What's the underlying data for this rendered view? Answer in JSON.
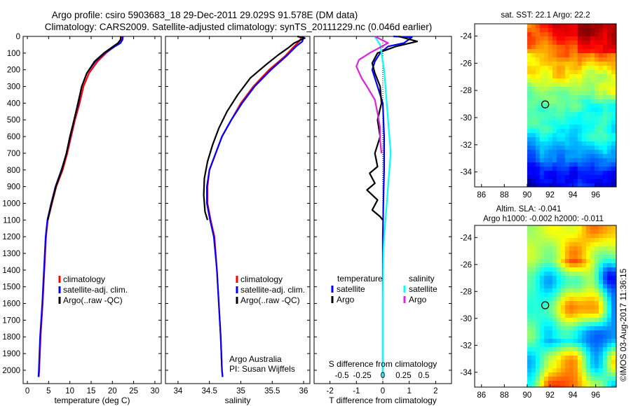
{
  "header": {
    "line1": "Argo profile: csiro 5903683_18 29-Dec-2011 29.029S 91.578E (DM data)",
    "line2": "Climatology: CARS2009. Satellite-adjusted climatology: synTS_20111229.nc (0.046d earlier)"
  },
  "credit": "©IMOS 03-Aug-2017 11:36:15",
  "colors": {
    "climatology": "#ff0000",
    "satellite": "#0000ff",
    "argo": "#000000",
    "salinity_satellite": "#00ffff",
    "salinity_argo": "#e020e0"
  },
  "chart_data": [
    {
      "type": "line",
      "name": "temperature",
      "xlabel": "temperature (deg C)",
      "xlim": [
        -1,
        31.5
      ],
      "ylim": [
        2080,
        0
      ],
      "xticks": [
        0,
        5,
        10,
        15,
        20,
        25,
        30
      ],
      "yticks": [
        0,
        100,
        200,
        300,
        400,
        500,
        600,
        700,
        800,
        900,
        1000,
        1100,
        1200,
        1300,
        1400,
        1500,
        1600,
        1700,
        1800,
        1900,
        2000
      ],
      "legend": [
        "climatology",
        "satellite-adj. clim.",
        "Argo(..raw -QC)"
      ],
      "series": [
        {
          "name": "climatology",
          "color": "#ff0000",
          "points": [
            [
              22.3,
              0
            ],
            [
              22.2,
              20
            ],
            [
              21.8,
              40
            ],
            [
              20.5,
              60
            ],
            [
              18.5,
              100
            ],
            [
              16.5,
              150
            ],
            [
              14.5,
              220
            ],
            [
              13.2,
              300
            ],
            [
              12.3,
              400
            ],
            [
              11.2,
              500
            ],
            [
              10.3,
              600
            ],
            [
              9.4,
              700
            ],
            [
              8.3,
              800
            ],
            [
              6.8,
              900
            ],
            [
              5.8,
              1000
            ],
            [
              4.8,
              1100
            ],
            [
              4.4,
              1200
            ],
            [
              4.0,
              1400
            ],
            [
              3.6,
              1600
            ],
            [
              3.1,
              1800
            ],
            [
              2.8,
              2000
            ],
            [
              2.7,
              2040
            ]
          ]
        },
        {
          "name": "satellite-adj. clim.",
          "color": "#0000ff",
          "points": [
            [
              22.5,
              0
            ],
            [
              22.4,
              20
            ],
            [
              21.9,
              40
            ],
            [
              20.6,
              60
            ],
            [
              18.2,
              100
            ],
            [
              16.0,
              150
            ],
            [
              14.0,
              220
            ],
            [
              12.8,
              300
            ],
            [
              12.0,
              400
            ],
            [
              11.0,
              500
            ],
            [
              10.1,
              600
            ],
            [
              9.2,
              700
            ],
            [
              8.0,
              800
            ],
            [
              6.6,
              900
            ],
            [
              5.6,
              1000
            ],
            [
              4.7,
              1100
            ],
            [
              4.3,
              1200
            ],
            [
              3.9,
              1400
            ],
            [
              3.5,
              1600
            ],
            [
              3.0,
              1800
            ],
            [
              2.7,
              2000
            ],
            [
              2.6,
              2040
            ]
          ]
        },
        {
          "name": "Argo(..raw -QC)",
          "color": "#000000",
          "points": [
            [
              22.0,
              0
            ],
            [
              21.9,
              20
            ],
            [
              21.3,
              40
            ],
            [
              20.2,
              60
            ],
            [
              18.0,
              100
            ],
            [
              15.8,
              150
            ],
            [
              14.0,
              220
            ],
            [
              12.8,
              300
            ],
            [
              11.9,
              400
            ],
            [
              11.0,
              500
            ],
            [
              10.0,
              600
            ],
            [
              9.2,
              700
            ],
            [
              8.1,
              800
            ],
            [
              6.7,
              900
            ],
            [
              5.7,
              1000
            ],
            [
              4.8,
              1100
            ]
          ]
        }
      ]
    },
    {
      "type": "line",
      "name": "salinity",
      "xlabel": "salinity",
      "xlim": [
        33.8,
        36.1
      ],
      "ylim": [
        2080,
        0
      ],
      "xticks": [
        34,
        34.5,
        35,
        35.5,
        36
      ],
      "legend": [
        "climatology",
        "satellite-adj. clim.",
        "Argo(..raw -QC)"
      ],
      "annotation": [
        "Argo Australia",
        "PI: Susan Wijffels"
      ],
      "series": [
        {
          "name": "climatology",
          "color": "#ff0000",
          "points": [
            [
              35.97,
              0
            ],
            [
              35.93,
              30
            ],
            [
              35.85,
              60
            ],
            [
              35.7,
              120
            ],
            [
              35.45,
              200
            ],
            [
              35.2,
              300
            ],
            [
              35.0,
              400
            ],
            [
              34.85,
              500
            ],
            [
              34.7,
              600
            ],
            [
              34.6,
              700
            ],
            [
              34.5,
              800
            ],
            [
              34.47,
              900
            ],
            [
              34.47,
              1000
            ],
            [
              34.52,
              1100
            ],
            [
              34.58,
              1200
            ],
            [
              34.62,
              1400
            ],
            [
              34.65,
              1600
            ],
            [
              34.68,
              1800
            ],
            [
              34.7,
              2000
            ],
            [
              34.71,
              2040
            ]
          ]
        },
        {
          "name": "satellite-adj. clim.",
          "color": "#0000ff",
          "points": [
            [
              36.0,
              0
            ],
            [
              35.98,
              30
            ],
            [
              35.88,
              60
            ],
            [
              35.72,
              120
            ],
            [
              35.48,
              200
            ],
            [
              35.22,
              300
            ],
            [
              35.02,
              400
            ],
            [
              34.85,
              500
            ],
            [
              34.7,
              600
            ],
            [
              34.6,
              700
            ],
            [
              34.5,
              800
            ],
            [
              34.46,
              900
            ],
            [
              34.46,
              1000
            ],
            [
              34.51,
              1100
            ],
            [
              34.57,
              1200
            ],
            [
              34.62,
              1400
            ],
            [
              34.65,
              1600
            ],
            [
              34.68,
              1800
            ],
            [
              34.7,
              2000
            ],
            [
              34.71,
              2040
            ]
          ]
        },
        {
          "name": "Argo(..raw -QC)",
          "color": "#000000",
          "points": [
            [
              35.9,
              0
            ],
            [
              36.02,
              10
            ],
            [
              35.85,
              40
            ],
            [
              35.75,
              70
            ],
            [
              35.6,
              110
            ],
            [
              35.4,
              170
            ],
            [
              35.15,
              250
            ],
            [
              34.95,
              350
            ],
            [
              34.78,
              450
            ],
            [
              34.65,
              550
            ],
            [
              34.55,
              650
            ],
            [
              34.47,
              750
            ],
            [
              34.42,
              850
            ],
            [
              34.41,
              950
            ],
            [
              34.43,
              1050
            ],
            [
              34.47,
              1100
            ]
          ]
        }
      ]
    },
    {
      "type": "line",
      "name": "differences",
      "xlabel": "T difference from climatology",
      "xlabel2": "S difference from climatology",
      "xlim": [
        -2.6,
        2.6
      ],
      "ylim": [
        2080,
        0
      ],
      "xticks": [
        -2,
        -1,
        0,
        1,
        2
      ],
      "xticks2": [
        "-0.5",
        "-0.25",
        "0",
        "0.25",
        "0.5"
      ],
      "legend_headers": [
        "temperature",
        "salinity"
      ],
      "legend": [
        "satellite",
        "Argo",
        "satellite",
        "Argo"
      ],
      "series": [
        {
          "name": "temperature satellite",
          "color": "#0000ff",
          "points": [
            [
              0.4,
              0
            ],
            [
              1.1,
              5
            ],
            [
              0.8,
              40
            ],
            [
              0.2,
              60
            ],
            [
              -0.1,
              100
            ],
            [
              -0.3,
              150
            ],
            [
              -0.4,
              200
            ],
            [
              -0.2,
              300
            ],
            [
              0.0,
              400
            ],
            [
              0.05,
              600
            ],
            [
              0.05,
              800
            ],
            [
              0.02,
              1000
            ],
            [
              0.0,
              1200
            ],
            [
              0.0,
              1600
            ],
            [
              0.0,
              2040
            ]
          ]
        },
        {
          "name": "temperature Argo",
          "color": "#000000",
          "points": [
            [
              0.6,
              0
            ],
            [
              1.3,
              30
            ],
            [
              0.5,
              60
            ],
            [
              -0.2,
              100
            ],
            [
              -0.4,
              160
            ],
            [
              -0.3,
              220
            ],
            [
              -0.1,
              300
            ],
            [
              -0.05,
              400
            ],
            [
              -0.2,
              500
            ],
            [
              -0.1,
              600
            ],
            [
              -0.3,
              700
            ],
            [
              -0.2,
              780
            ],
            [
              -0.5,
              820
            ],
            [
              -0.3,
              880
            ],
            [
              -0.6,
              920
            ],
            [
              -0.2,
              980
            ],
            [
              -0.4,
              1040
            ],
            [
              -0.1,
              1080
            ],
            [
              0.0,
              1100
            ]
          ]
        },
        {
          "name": "salinity satellite",
          "color": "#00ffff",
          "points": [
            [
              -0.3,
              0
            ],
            [
              -0.1,
              50
            ],
            [
              -0.05,
              100
            ],
            [
              0.05,
              200
            ],
            [
              0.1,
              300
            ],
            [
              0.15,
              400
            ],
            [
              0.2,
              500
            ],
            [
              0.25,
              600
            ],
            [
              0.3,
              700
            ],
            [
              0.25,
              800
            ],
            [
              0.2,
              900
            ],
            [
              0.15,
              1000
            ],
            [
              0.1,
              1100
            ],
            [
              0.05,
              1200
            ],
            [
              0.02,
              1300
            ],
            [
              0.0,
              1600
            ],
            [
              0.0,
              2040
            ]
          ]
        },
        {
          "name": "salinity Argo",
          "color": "#e020e0",
          "points": [
            [
              -0.3,
              0
            ],
            [
              0.2,
              40
            ],
            [
              -0.5,
              100
            ],
            [
              -0.9,
              140
            ],
            [
              -1.0,
              180
            ],
            [
              -0.8,
              250
            ],
            [
              -0.6,
              300
            ],
            [
              -0.3,
              380
            ],
            [
              -0.2,
              460
            ],
            [
              -0.1,
              550
            ],
            [
              -0.1,
              620
            ],
            [
              -0.05,
              700
            ]
          ]
        }
      ]
    },
    {
      "type": "heatmap",
      "name": "sst-map",
      "title": "sat. SST: 22.1  Argo: 22.2",
      "xticks": [
        86,
        88,
        90,
        92,
        94,
        96
      ],
      "yticks": [
        -24,
        -26,
        -28,
        -30,
        -32,
        -34
      ],
      "xlim": [
        85.4,
        97.8
      ],
      "ylim": [
        -35.1,
        -23.1
      ],
      "data_x_range": [
        90,
        97.8
      ],
      "marker": {
        "lon": 91.578,
        "lat": -29.029
      }
    },
    {
      "type": "heatmap",
      "name": "sla-map",
      "title_line1": "Altim. SLA: -0.041",
      "title_line2": "Argo h1000: -0.002  h2000: -0.011",
      "xticks": [
        86,
        88,
        90,
        92,
        94,
        96
      ],
      "yticks": [
        -24,
        -26,
        -28,
        -30,
        -32,
        -34
      ],
      "xlim": [
        85.4,
        97.8
      ],
      "ylim": [
        -35.1,
        -23.1
      ],
      "data_x_range": [
        90,
        97.8
      ],
      "marker": {
        "lon": 91.578,
        "lat": -29.029
      }
    }
  ]
}
